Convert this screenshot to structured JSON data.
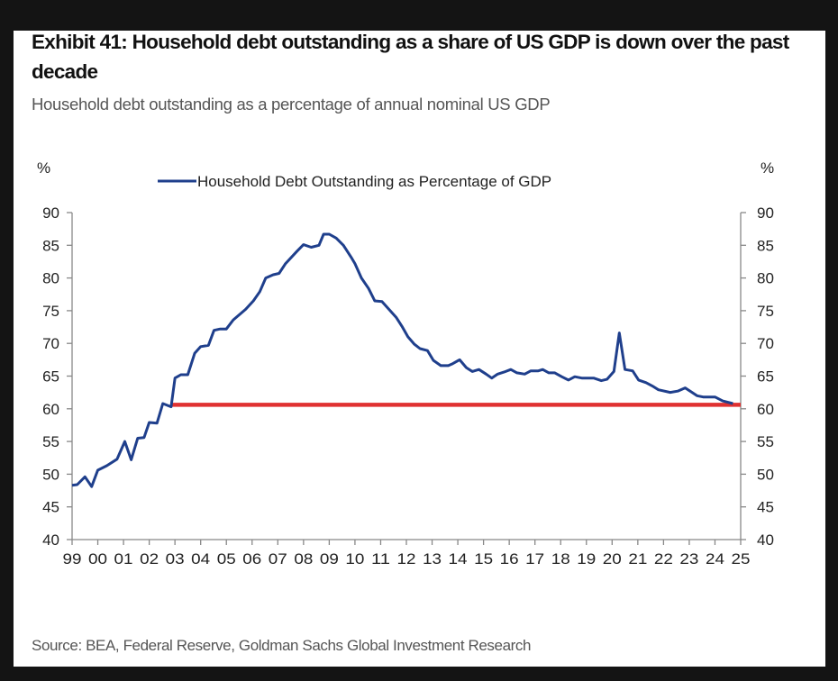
{
  "title": "Exhibit 41: Household debt outstanding as a share of US GDP is down over the past decade",
  "subtitle": "Household debt outstanding as a percentage of annual nominal US GDP",
  "source": "Source: BEA, Federal Reserve, Goldman Sachs Global Investment Research",
  "chart_data": {
    "type": "line",
    "title": "Exhibit 41: Household debt outstanding as a share of US GDP is down over the past decade",
    "subtitle": "Household debt outstanding as a percentage of annual nominal US GDP",
    "y_unit_left": "%",
    "y_unit_right": "%",
    "ylim": [
      40,
      90
    ],
    "xlim": [
      1999,
      2025
    ],
    "y_ticks": [
      "40",
      "45",
      "50",
      "55",
      "60",
      "65",
      "70",
      "75",
      "80",
      "85",
      "90"
    ],
    "x_ticks": [
      "99",
      "00",
      "01",
      "02",
      "03",
      "04",
      "05",
      "06",
      "07",
      "08",
      "09",
      "10",
      "11",
      "12",
      "13",
      "14",
      "15",
      "16",
      "17",
      "18",
      "19",
      "20",
      "21",
      "22",
      "23",
      "24",
      "25"
    ],
    "grid": false,
    "legend_position": "top-center",
    "series": [
      {
        "name": "Household Debt Outstanding as Percentage of GDP",
        "color": "#1f3f8c",
        "x": [
          1999.0,
          1999.2,
          1999.5,
          1999.76,
          2000.0,
          2000.35,
          2000.75,
          2001.05,
          2001.3,
          2001.55,
          2001.8,
          2002.0,
          2002.3,
          2002.53,
          2002.85,
          2003.0,
          2003.23,
          2003.5,
          2003.77,
          2004.0,
          2004.3,
          2004.52,
          2004.76,
          2005.0,
          2005.27,
          2005.75,
          2006.05,
          2006.3,
          2006.53,
          2006.82,
          2007.05,
          2007.3,
          2007.75,
          2008.0,
          2008.3,
          2008.6,
          2008.78,
          2009.0,
          2009.27,
          2009.55,
          2009.85,
          2010.0,
          2010.25,
          2010.53,
          2010.77,
          2011.05,
          2011.6,
          2011.83,
          2012.06,
          2012.3,
          2012.53,
          2012.82,
          2013.05,
          2013.34,
          2013.63,
          2013.8,
          2014.07,
          2014.33,
          2014.56,
          2014.82,
          2015.1,
          2015.32,
          2015.55,
          2015.79,
          2016.06,
          2016.3,
          2016.6,
          2016.84,
          2017.13,
          2017.3,
          2017.54,
          2017.77,
          2018.04,
          2018.3,
          2018.55,
          2018.82,
          2019.28,
          2019.58,
          2019.8,
          2020.07,
          2020.28,
          2020.5,
          2020.8,
          2021.03,
          2021.32,
          2021.56,
          2021.8,
          2022.26,
          2022.55,
          2022.84,
          2023.07,
          2023.3,
          2023.54,
          2024.0,
          2024.3,
          2024.7
        ],
        "y": [
          48.3,
          48.4,
          49.6,
          48.1,
          50.6,
          51.3,
          52.3,
          55.0,
          52.2,
          55.5,
          55.6,
          57.9,
          57.8,
          60.8,
          60.3,
          64.7,
          65.2,
          65.2,
          68.5,
          69.5,
          69.7,
          72.0,
          72.2,
          72.2,
          73.6,
          75.2,
          76.5,
          77.9,
          80.0,
          80.5,
          80.7,
          82.2,
          84.1,
          85.1,
          84.7,
          85.0,
          86.7,
          86.7,
          86.1,
          85.0,
          83.2,
          82.2,
          80.0,
          78.4,
          76.5,
          76.4,
          74.0,
          72.6,
          71.0,
          69.9,
          69.2,
          68.9,
          67.4,
          66.6,
          66.6,
          66.9,
          67.5,
          66.3,
          65.7,
          66.0,
          65.3,
          64.7,
          65.3,
          65.6,
          66.0,
          65.5,
          65.3,
          65.8,
          65.8,
          66.0,
          65.5,
          65.5,
          64.9,
          64.4,
          64.9,
          64.7,
          64.7,
          64.3,
          64.5,
          65.7,
          71.6,
          66.0,
          65.8,
          64.4,
          64.0,
          63.5,
          62.9,
          62.5,
          62.7,
          63.2,
          62.6,
          62.0,
          61.8,
          61.8,
          61.2,
          60.8
        ]
      },
      {
        "color": "#e03131",
        "x": [
          2002.85,
          2025.0
        ],
        "y": [
          60.6,
          60.6
        ]
      }
    ]
  }
}
